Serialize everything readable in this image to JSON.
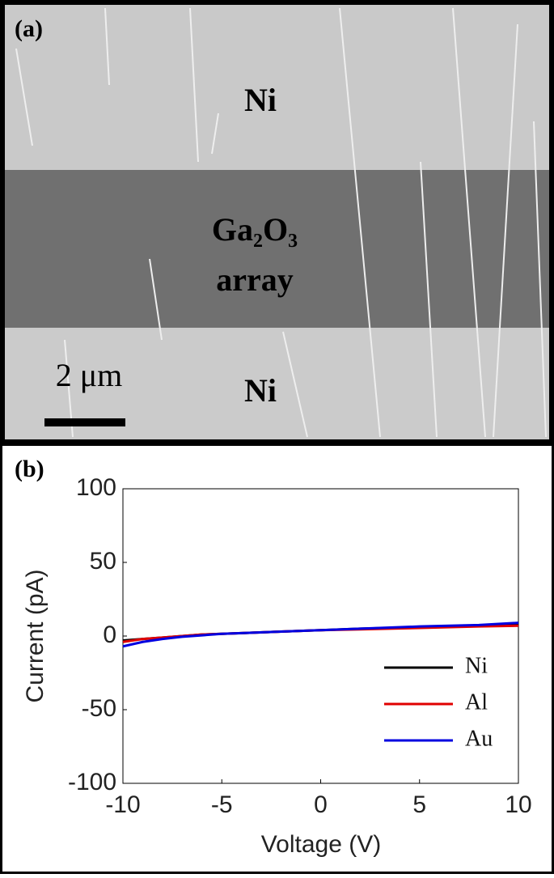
{
  "panel_a": {
    "label": "(a)",
    "top_electrode": "Ni",
    "middle_line1": "Ga₂O₃",
    "middle_line2": "array",
    "bottom_electrode": "Ni",
    "scale_bar": "2 μm"
  },
  "chart_data": {
    "type": "line",
    "panel_label": "(b)",
    "x_label": "Voltage (V)",
    "y_label": "Current (pA)",
    "x": [
      -10,
      -9,
      -8,
      -7,
      -6,
      -5,
      -4,
      -2,
      0,
      2,
      5,
      8,
      10
    ],
    "series": [
      {
        "name": "Ni",
        "color": "#000000",
        "values": [
          -3,
          -2,
          -1,
          0,
          1,
          1.5,
          2,
          3,
          4,
          5,
          6,
          7,
          8
        ]
      },
      {
        "name": "Al",
        "color": "#e00000",
        "values": [
          -4,
          -2,
          -1,
          0,
          1,
          1.5,
          2,
          3,
          4,
          4.5,
          5.5,
          6.5,
          7
        ]
      },
      {
        "name": "Au",
        "color": "#0000e0",
        "values": [
          -7,
          -4,
          -2,
          -0.5,
          0.5,
          1.5,
          2,
          3,
          4,
          5,
          6.5,
          7.5,
          9
        ]
      }
    ],
    "xlim": [
      -10,
      10
    ],
    "ylim": [
      -100,
      100
    ],
    "xticks": [
      -10,
      -5,
      0,
      5,
      10
    ],
    "yticks": [
      -100,
      -50,
      0,
      50,
      100
    ],
    "legend": "lower right"
  }
}
